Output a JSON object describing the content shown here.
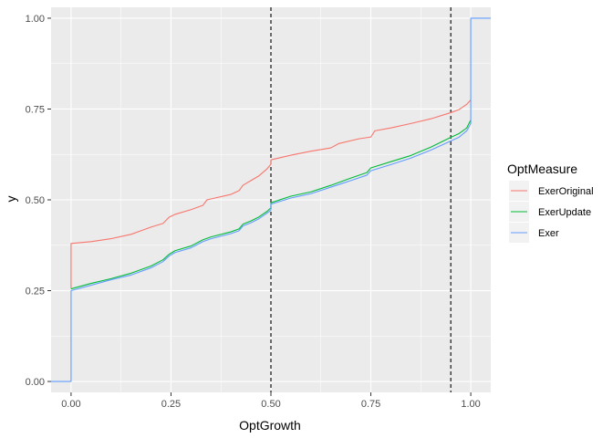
{
  "chart_data": {
    "type": "line",
    "xlabel": "OptGrowth",
    "ylabel": "y",
    "xlim": [
      -0.05,
      1.05
    ],
    "ylim": [
      -0.03,
      1.03
    ],
    "x_ticks": [
      "0.00",
      "0.25",
      "0.50",
      "0.75",
      "1.00"
    ],
    "y_ticks": [
      "0.00",
      "0.25",
      "0.50",
      "0.75",
      "1.00"
    ],
    "grid": true,
    "legend": {
      "title": "OptMeasure",
      "position": "right",
      "entries": [
        "ExerOriginal",
        "ExerUpdate",
        "Exer"
      ]
    },
    "vlines": [
      {
        "x": 0.5,
        "style": "dashed",
        "color": "#000000"
      },
      {
        "x": 0.95,
        "style": "dashed",
        "color": "#000000"
      }
    ],
    "series": [
      {
        "name": "ExerOriginal",
        "color": "#F8766D",
        "points": [
          [
            0.0,
            0.255
          ],
          [
            0.0,
            0.38
          ],
          [
            0.05,
            0.385
          ],
          [
            0.1,
            0.393
          ],
          [
            0.15,
            0.405
          ],
          [
            0.2,
            0.425
          ],
          [
            0.23,
            0.435
          ],
          [
            0.245,
            0.452
          ],
          [
            0.26,
            0.46
          ],
          [
            0.3,
            0.473
          ],
          [
            0.33,
            0.485
          ],
          [
            0.34,
            0.5
          ],
          [
            0.4,
            0.515
          ],
          [
            0.42,
            0.525
          ],
          [
            0.43,
            0.54
          ],
          [
            0.45,
            0.553
          ],
          [
            0.47,
            0.566
          ],
          [
            0.49,
            0.585
          ],
          [
            0.5,
            0.598
          ],
          [
            0.5,
            0.61
          ],
          [
            0.55,
            0.623
          ],
          [
            0.6,
            0.634
          ],
          [
            0.65,
            0.643
          ],
          [
            0.67,
            0.655
          ],
          [
            0.72,
            0.668
          ],
          [
            0.75,
            0.673
          ],
          [
            0.76,
            0.69
          ],
          [
            0.8,
            0.698
          ],
          [
            0.85,
            0.71
          ],
          [
            0.9,
            0.723
          ],
          [
            0.95,
            0.74
          ],
          [
            0.97,
            0.748
          ],
          [
            0.99,
            0.763
          ],
          [
            1.0,
            0.775
          ]
        ]
      },
      {
        "name": "ExerUpdate",
        "color": "#00BA38",
        "points": [
          [
            0.0,
            0.255
          ],
          [
            0.05,
            0.27
          ],
          [
            0.1,
            0.283
          ],
          [
            0.15,
            0.298
          ],
          [
            0.2,
            0.318
          ],
          [
            0.23,
            0.335
          ],
          [
            0.245,
            0.35
          ],
          [
            0.26,
            0.36
          ],
          [
            0.3,
            0.373
          ],
          [
            0.33,
            0.39
          ],
          [
            0.35,
            0.398
          ],
          [
            0.4,
            0.412
          ],
          [
            0.42,
            0.42
          ],
          [
            0.43,
            0.433
          ],
          [
            0.45,
            0.442
          ],
          [
            0.47,
            0.453
          ],
          [
            0.49,
            0.468
          ],
          [
            0.5,
            0.478
          ],
          [
            0.5,
            0.492
          ],
          [
            0.55,
            0.51
          ],
          [
            0.6,
            0.522
          ],
          [
            0.65,
            0.54
          ],
          [
            0.7,
            0.56
          ],
          [
            0.74,
            0.575
          ],
          [
            0.75,
            0.588
          ],
          [
            0.8,
            0.605
          ],
          [
            0.85,
            0.622
          ],
          [
            0.9,
            0.645
          ],
          [
            0.95,
            0.672
          ],
          [
            0.97,
            0.682
          ],
          [
            0.99,
            0.698
          ],
          [
            1.0,
            0.72
          ]
        ]
      },
      {
        "name": "Exer",
        "color": "#619CFF",
        "points": [
          [
            -0.05,
            0.0
          ],
          [
            0.0,
            0.0
          ],
          [
            0.0,
            0.25
          ],
          [
            0.05,
            0.265
          ],
          [
            0.1,
            0.28
          ],
          [
            0.15,
            0.293
          ],
          [
            0.2,
            0.313
          ],
          [
            0.23,
            0.33
          ],
          [
            0.245,
            0.345
          ],
          [
            0.26,
            0.355
          ],
          [
            0.3,
            0.368
          ],
          [
            0.33,
            0.385
          ],
          [
            0.35,
            0.393
          ],
          [
            0.4,
            0.407
          ],
          [
            0.42,
            0.415
          ],
          [
            0.43,
            0.428
          ],
          [
            0.45,
            0.437
          ],
          [
            0.47,
            0.448
          ],
          [
            0.49,
            0.463
          ],
          [
            0.5,
            0.472
          ],
          [
            0.5,
            0.488
          ],
          [
            0.55,
            0.505
          ],
          [
            0.6,
            0.517
          ],
          [
            0.65,
            0.535
          ],
          [
            0.7,
            0.553
          ],
          [
            0.74,
            0.568
          ],
          [
            0.75,
            0.58
          ],
          [
            0.8,
            0.597
          ],
          [
            0.85,
            0.615
          ],
          [
            0.9,
            0.637
          ],
          [
            0.95,
            0.662
          ],
          [
            0.97,
            0.672
          ],
          [
            0.99,
            0.69
          ],
          [
            1.0,
            0.71
          ],
          [
            1.0,
            1.0
          ],
          [
            1.05,
            1.0
          ]
        ]
      }
    ]
  }
}
